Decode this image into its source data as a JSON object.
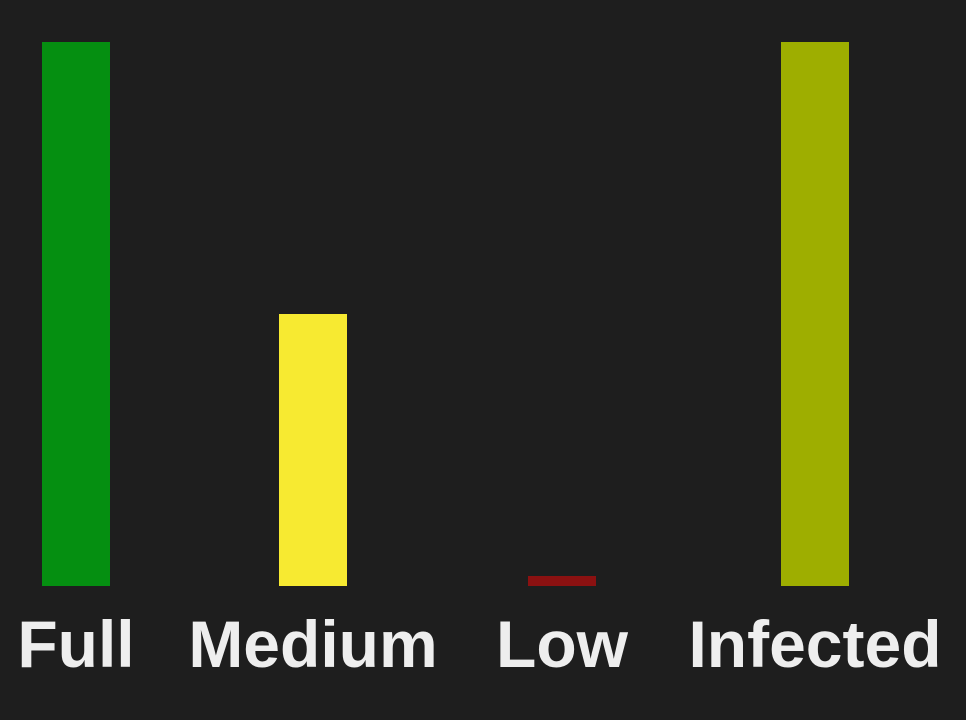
{
  "chart_data": {
    "type": "bar",
    "categories": [
      "Full",
      "Medium",
      "Low",
      "Infected"
    ],
    "series": [
      {
        "values": [
          100,
          50,
          1,
          100
        ],
        "colors": [
          "#058f11",
          "#f7ea31",
          "#8b1111",
          "#9eae00"
        ]
      }
    ],
    "ylim": [
      0,
      100
    ],
    "grid": false,
    "legend": "none",
    "title": "",
    "xlabel": "",
    "ylabel": ""
  },
  "colors": {
    "background": "#1e1e1e",
    "label_text": "#eeeeee"
  }
}
